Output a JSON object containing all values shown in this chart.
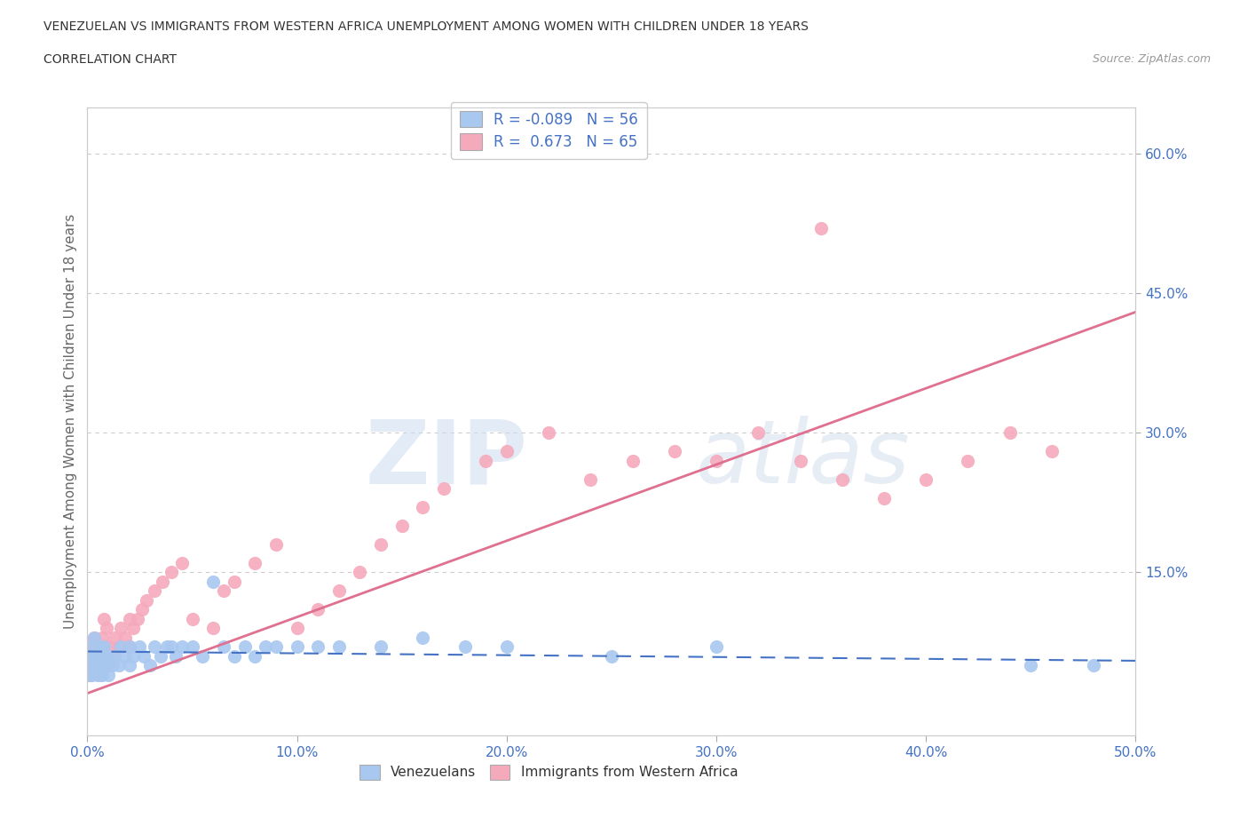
{
  "title_line1": "VENEZUELAN VS IMMIGRANTS FROM WESTERN AFRICA UNEMPLOYMENT AMONG WOMEN WITH CHILDREN UNDER 18 YEARS",
  "title_line2": "CORRELATION CHART",
  "source": "Source: ZipAtlas.com",
  "ylabel": "Unemployment Among Women with Children Under 18 years",
  "xlim": [
    0,
    0.5
  ],
  "ylim": [
    -0.025,
    0.65
  ],
  "xtick_labels": [
    "0.0%",
    "10.0%",
    "20.0%",
    "30.0%",
    "40.0%",
    "50.0%"
  ],
  "xtick_vals": [
    0.0,
    0.1,
    0.2,
    0.3,
    0.4,
    0.5
  ],
  "ytick_labels_right": [
    "15.0%",
    "30.0%",
    "45.0%",
    "60.0%"
  ],
  "ytick_vals_right": [
    0.15,
    0.3,
    0.45,
    0.6
  ],
  "watermark_zip": "ZIP",
  "watermark_atlas": "atlas",
  "blue_color": "#A8C8F0",
  "pink_color": "#F5AABC",
  "blue_dark": "#4472C4",
  "pink_dark": "#E07090",
  "venezuelan_R": -0.089,
  "venezuelan_N": 56,
  "western_africa_R": 0.673,
  "western_africa_N": 65,
  "ven_x": [
    0.0,
    0.0,
    0.001,
    0.002,
    0.002,
    0.003,
    0.003,
    0.004,
    0.005,
    0.005,
    0.006,
    0.006,
    0.007,
    0.007,
    0.008,
    0.008,
    0.009,
    0.01,
    0.01,
    0.012,
    0.013,
    0.015,
    0.016,
    0.018,
    0.02,
    0.02,
    0.022,
    0.025,
    0.027,
    0.03,
    0.032,
    0.035,
    0.038,
    0.04,
    0.042,
    0.045,
    0.05,
    0.055,
    0.06,
    0.065,
    0.07,
    0.075,
    0.08,
    0.085,
    0.09,
    0.1,
    0.11,
    0.12,
    0.14,
    0.16,
    0.18,
    0.2,
    0.25,
    0.3,
    0.45,
    0.48
  ],
  "ven_y": [
    0.04,
    0.06,
    0.05,
    0.07,
    0.04,
    0.06,
    0.08,
    0.05,
    0.04,
    0.06,
    0.05,
    0.07,
    0.04,
    0.06,
    0.05,
    0.07,
    0.05,
    0.04,
    0.06,
    0.05,
    0.06,
    0.05,
    0.07,
    0.06,
    0.05,
    0.07,
    0.06,
    0.07,
    0.06,
    0.05,
    0.07,
    0.06,
    0.07,
    0.07,
    0.06,
    0.07,
    0.07,
    0.06,
    0.14,
    0.07,
    0.06,
    0.07,
    0.06,
    0.07,
    0.07,
    0.07,
    0.07,
    0.07,
    0.07,
    0.08,
    0.07,
    0.07,
    0.06,
    0.07,
    0.05,
    0.05
  ],
  "wa_x": [
    0.0,
    0.0,
    0.001,
    0.001,
    0.002,
    0.002,
    0.003,
    0.003,
    0.004,
    0.005,
    0.005,
    0.006,
    0.006,
    0.007,
    0.007,
    0.008,
    0.008,
    0.009,
    0.01,
    0.01,
    0.012,
    0.013,
    0.015,
    0.016,
    0.018,
    0.02,
    0.02,
    0.022,
    0.024,
    0.026,
    0.028,
    0.032,
    0.036,
    0.04,
    0.045,
    0.05,
    0.06,
    0.065,
    0.07,
    0.08,
    0.09,
    0.1,
    0.11,
    0.12,
    0.13,
    0.14,
    0.15,
    0.16,
    0.17,
    0.19,
    0.2,
    0.22,
    0.24,
    0.26,
    0.28,
    0.3,
    0.32,
    0.34,
    0.36,
    0.38,
    0.4,
    0.42,
    0.44,
    0.46,
    0.35
  ],
  "wa_y": [
    0.04,
    0.06,
    0.05,
    0.07,
    0.04,
    0.06,
    0.05,
    0.08,
    0.06,
    0.05,
    0.07,
    0.04,
    0.06,
    0.05,
    0.08,
    0.1,
    0.07,
    0.09,
    0.05,
    0.07,
    0.06,
    0.08,
    0.07,
    0.09,
    0.08,
    0.07,
    0.1,
    0.09,
    0.1,
    0.11,
    0.12,
    0.13,
    0.14,
    0.15,
    0.16,
    0.1,
    0.09,
    0.13,
    0.14,
    0.16,
    0.18,
    0.09,
    0.11,
    0.13,
    0.15,
    0.18,
    0.2,
    0.22,
    0.24,
    0.27,
    0.28,
    0.3,
    0.25,
    0.27,
    0.28,
    0.27,
    0.3,
    0.27,
    0.25,
    0.23,
    0.25,
    0.27,
    0.3,
    0.28,
    0.52
  ],
  "pink_trend_x": [
    0.0,
    0.5
  ],
  "pink_trend_y": [
    0.02,
    0.43
  ],
  "blue_trend_x": [
    0.0,
    0.5
  ],
  "blue_trend_y": [
    0.065,
    0.055
  ],
  "bg_color": "#FFFFFF",
  "grid_color": "#CCCCCC"
}
